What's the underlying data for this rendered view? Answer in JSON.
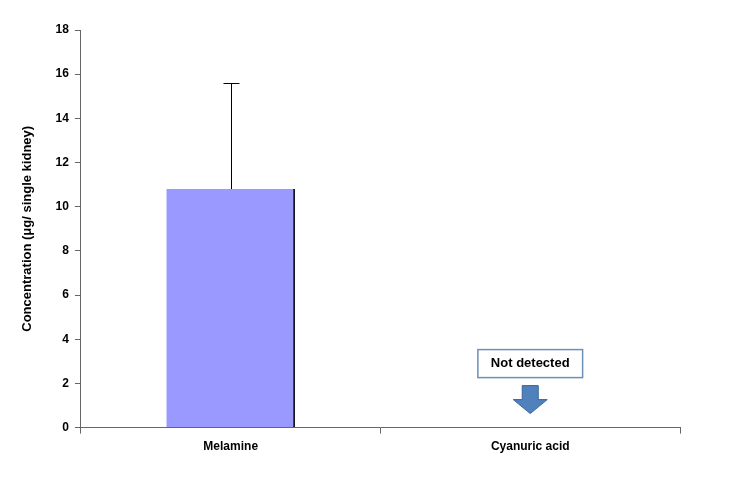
{
  "chart_data": {
    "type": "bar",
    "categories": [
      "Melamine",
      "Cyanuric acid"
    ],
    "values": [
      10.8,
      null
    ],
    "errors": [
      4.8,
      null
    ],
    "color": "#9999ff",
    "ylabel": "Concentration (μg/ single kidney)",
    "ylim": [
      0,
      18
    ],
    "yticks": [
      0,
      2,
      4,
      6,
      8,
      10,
      12,
      14,
      16,
      18
    ],
    "grid": false,
    "annotations": [
      {
        "text": "Not detected",
        "category": "Cyanuric acid"
      }
    ]
  }
}
